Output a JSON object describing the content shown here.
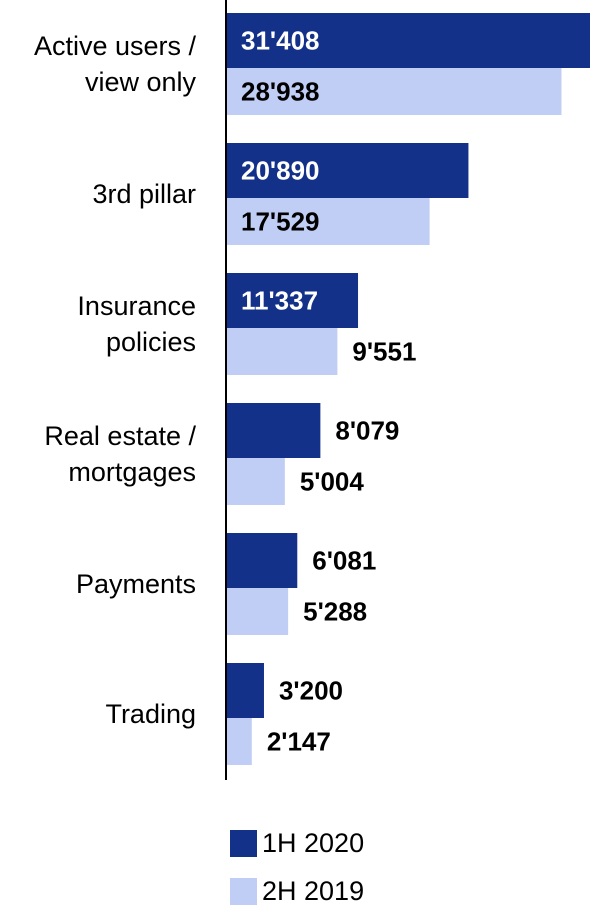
{
  "chart_data": {
    "type": "bar",
    "orientation": "horizontal",
    "categories": [
      "Active users /\nview only",
      "3rd pillar",
      "Insurance\npolicies",
      "Real estate /\nmortgages",
      "Payments",
      "Trading"
    ],
    "series": [
      {
        "name": "1H 2020",
        "color": "#14318a",
        "values": [
          31408,
          20890,
          11337,
          8079,
          6081,
          3200
        ],
        "value_labels": [
          "31'408",
          "20'890",
          "11'337",
          "8'079",
          "6'081",
          "3'200"
        ]
      },
      {
        "name": "2H 2019",
        "color": "#c0cdf5",
        "values": [
          28938,
          17529,
          9551,
          5004,
          5288,
          2147
        ],
        "value_labels": [
          "28'938",
          "17'529",
          "9'551",
          "5'004",
          "5'288",
          "2'147"
        ]
      }
    ],
    "legend": "bottom"
  }
}
